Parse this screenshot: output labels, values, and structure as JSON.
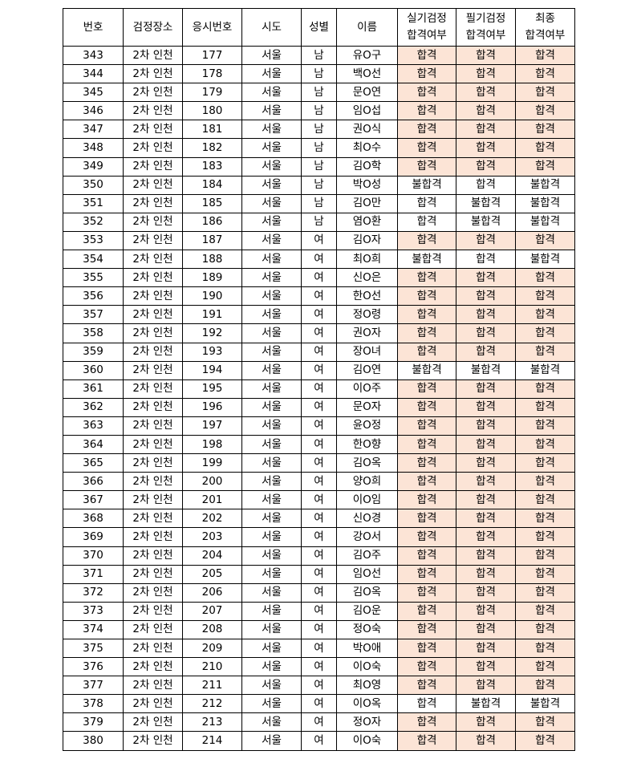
{
  "table": {
    "header": [
      "번호",
      "검정장소",
      "응시번호",
      "시도",
      "성별",
      "이름",
      "실기검정\n합격여부",
      "필기검정\n합격여부",
      "최종\n합격여부"
    ],
    "highlight": {
      "color": "#fce4d6",
      "columns": [
        6,
        7,
        8
      ],
      "rows": [
        0,
        1,
        2,
        3,
        4,
        5,
        6,
        10,
        12,
        13,
        14,
        15,
        16,
        18,
        19,
        20,
        21,
        22,
        23,
        24,
        25,
        26,
        27,
        28,
        29,
        30,
        31,
        32,
        33,
        34,
        36,
        37
      ]
    },
    "rows": [
      [
        343,
        "2차 인천",
        177,
        "서울",
        "남",
        "유O구",
        "합격",
        "합격",
        "합격"
      ],
      [
        344,
        "2차 인천",
        178,
        "서울",
        "남",
        "백O선",
        "합격",
        "합격",
        "합격"
      ],
      [
        345,
        "2차 인천",
        179,
        "서울",
        "남",
        "문O연",
        "합격",
        "합격",
        "합격"
      ],
      [
        346,
        "2차 인천",
        180,
        "서울",
        "남",
        "임O섭",
        "합격",
        "합격",
        "합격"
      ],
      [
        347,
        "2차 인천",
        181,
        "서울",
        "남",
        "권O식",
        "합격",
        "합격",
        "합격"
      ],
      [
        348,
        "2차 인천",
        182,
        "서울",
        "남",
        "최O수",
        "합격",
        "합격",
        "합격"
      ],
      [
        349,
        "2차 인천",
        183,
        "서울",
        "남",
        "김O학",
        "합격",
        "합격",
        "합격"
      ],
      [
        350,
        "2차 인천",
        184,
        "서울",
        "남",
        "박O성",
        "불합격",
        "합격",
        "불합격"
      ],
      [
        351,
        "2차 인천",
        185,
        "서울",
        "남",
        "김O만",
        "합격",
        "불합격",
        "불합격"
      ],
      [
        352,
        "2차 인천",
        186,
        "서울",
        "남",
        "염O환",
        "합격",
        "불합격",
        "불합격"
      ],
      [
        353,
        "2차 인천",
        187,
        "서울",
        "여",
        "김O자",
        "합격",
        "합격",
        "합격"
      ],
      [
        354,
        "2차 인천",
        188,
        "서울",
        "여",
        "최O희",
        "불합격",
        "합격",
        "불합격"
      ],
      [
        355,
        "2차 인천",
        189,
        "서울",
        "여",
        "신O은",
        "합격",
        "합격",
        "합격"
      ],
      [
        356,
        "2차 인천",
        190,
        "서울",
        "여",
        "한O선",
        "합격",
        "합격",
        "합격"
      ],
      [
        357,
        "2차 인천",
        191,
        "서울",
        "여",
        "정O령",
        "합격",
        "합격",
        "합격"
      ],
      [
        358,
        "2차 인천",
        192,
        "서울",
        "여",
        "권O자",
        "합격",
        "합격",
        "합격"
      ],
      [
        359,
        "2차 인천",
        193,
        "서울",
        "여",
        "장O녀",
        "합격",
        "합격",
        "합격"
      ],
      [
        360,
        "2차 인천",
        194,
        "서울",
        "여",
        "김O연",
        "불합격",
        "불합격",
        "불합격"
      ],
      [
        361,
        "2차 인천",
        195,
        "서울",
        "여",
        "이O주",
        "합격",
        "합격",
        "합격"
      ],
      [
        362,
        "2차 인천",
        196,
        "서울",
        "여",
        "문O자",
        "합격",
        "합격",
        "합격"
      ],
      [
        363,
        "2차 인천",
        197,
        "서울",
        "여",
        "윤O정",
        "합격",
        "합격",
        "합격"
      ],
      [
        364,
        "2차 인천",
        198,
        "서울",
        "여",
        "한O향",
        "합격",
        "합격",
        "합격"
      ],
      [
        365,
        "2차 인천",
        199,
        "서울",
        "여",
        "김O옥",
        "합격",
        "합격",
        "합격"
      ],
      [
        366,
        "2차 인천",
        200,
        "서울",
        "여",
        "양O희",
        "합격",
        "합격",
        "합격"
      ],
      [
        367,
        "2차 인천",
        201,
        "서울",
        "여",
        "이O임",
        "합격",
        "합격",
        "합격"
      ],
      [
        368,
        "2차 인천",
        202,
        "서울",
        "여",
        "신O경",
        "합격",
        "합격",
        "합격"
      ],
      [
        369,
        "2차 인천",
        203,
        "서울",
        "여",
        "강O서",
        "합격",
        "합격",
        "합격"
      ],
      [
        370,
        "2차 인천",
        204,
        "서울",
        "여",
        "김O주",
        "합격",
        "합격",
        "합격"
      ],
      [
        371,
        "2차 인천",
        205,
        "서울",
        "여",
        "임O선",
        "합격",
        "합격",
        "합격"
      ],
      [
        372,
        "2차 인천",
        206,
        "서울",
        "여",
        "김O옥",
        "합격",
        "합격",
        "합격"
      ],
      [
        373,
        "2차 인천",
        207,
        "서울",
        "여",
        "김O운",
        "합격",
        "합격",
        "합격"
      ],
      [
        374,
        "2차 인천",
        208,
        "서울",
        "여",
        "정O숙",
        "합격",
        "합격",
        "합격"
      ],
      [
        375,
        "2차 인천",
        209,
        "서울",
        "여",
        "박O애",
        "합격",
        "합격",
        "합격"
      ],
      [
        376,
        "2차 인천",
        210,
        "서울",
        "여",
        "이O숙",
        "합격",
        "합격",
        "합격"
      ],
      [
        377,
        "2차 인천",
        211,
        "서울",
        "여",
        "최O영",
        "합격",
        "합격",
        "합격"
      ],
      [
        378,
        "2차 인천",
        212,
        "서울",
        "여",
        "이O옥",
        "합격",
        "불합격",
        "불합격"
      ],
      [
        379,
        "2차 인천",
        213,
        "서울",
        "여",
        "정O자",
        "합격",
        "합격",
        "합격"
      ],
      [
        380,
        "2차 인천",
        214,
        "서울",
        "여",
        "이O숙",
        "합격",
        "합격",
        "합격"
      ]
    ]
  }
}
